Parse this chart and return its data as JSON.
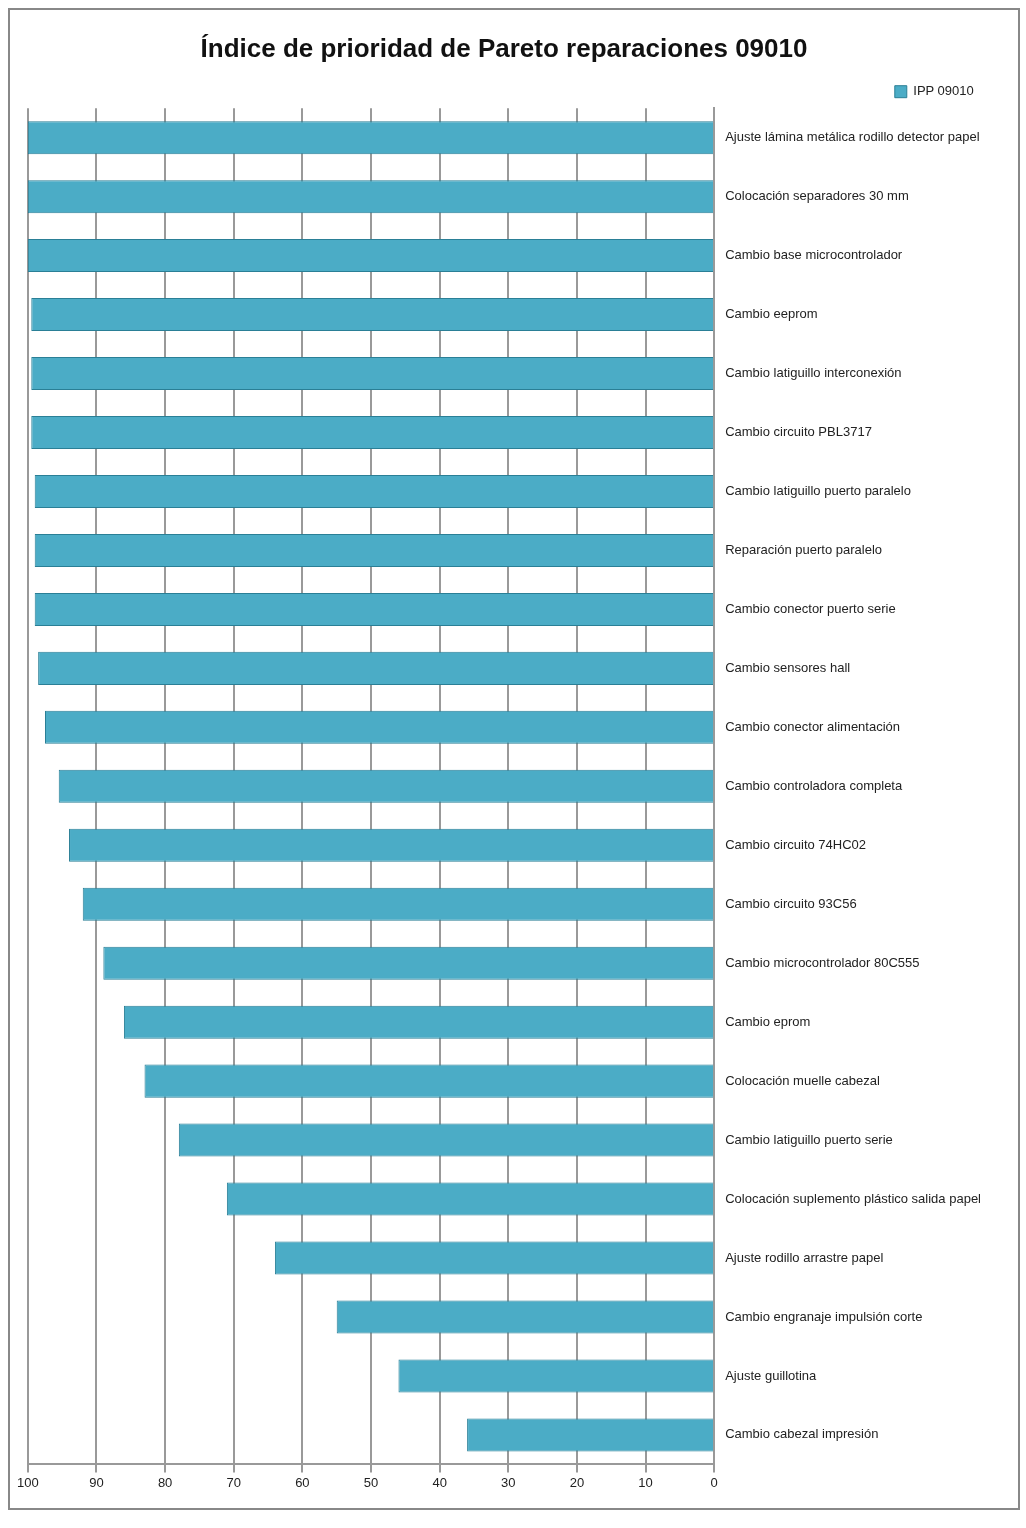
{
  "chart_data": {
    "type": "bar",
    "orientation": "horizontal",
    "title": "Índice de prioridad de Pareto reparaciones 09010",
    "categories": [
      "Ajuste lámina metálica rodillo detector papel",
      "Colocación separadores 30 mm",
      "Cambio base microcontrolador",
      "Cambio eeprom",
      "Cambio latiguillo interconexión",
      "Cambio circuito PBL3717",
      "Cambio latiguillo puerto paralelo",
      "Reparación puerto paralelo",
      "Cambio conector puerto serie",
      "Cambio sensores hall",
      "Cambio conector alimentación",
      "Cambio controladora completa",
      "Cambio circuito 74HC02",
      "Cambio circuito 93C56",
      "Cambio microcontrolador 80C555",
      "Cambio eprom",
      "Colocación muelle cabezal",
      "Cambio latiguillo puerto serie",
      "Colocación suplemento plástico salida papel",
      "Ajuste rodillo arrastre papel",
      "Cambio engranaje impulsión corte",
      "Ajuste guillotina",
      "Cambio cabezal impresión"
    ],
    "series": [
      {
        "name": "IPP 09010",
        "color": "#4bacc6",
        "values": [
          100,
          100,
          100,
          99.5,
          99.5,
          99.5,
          99,
          99,
          99,
          98.5,
          97.5,
          95.5,
          94,
          92,
          89,
          86,
          83,
          78,
          71,
          64,
          55,
          46,
          36
        ]
      }
    ],
    "xlim": [
      100,
      0
    ],
    "xticks": [
      100,
      90,
      80,
      70,
      60,
      50,
      40,
      30,
      20,
      10,
      0
    ],
    "grid": "x",
    "legend": "top right"
  }
}
